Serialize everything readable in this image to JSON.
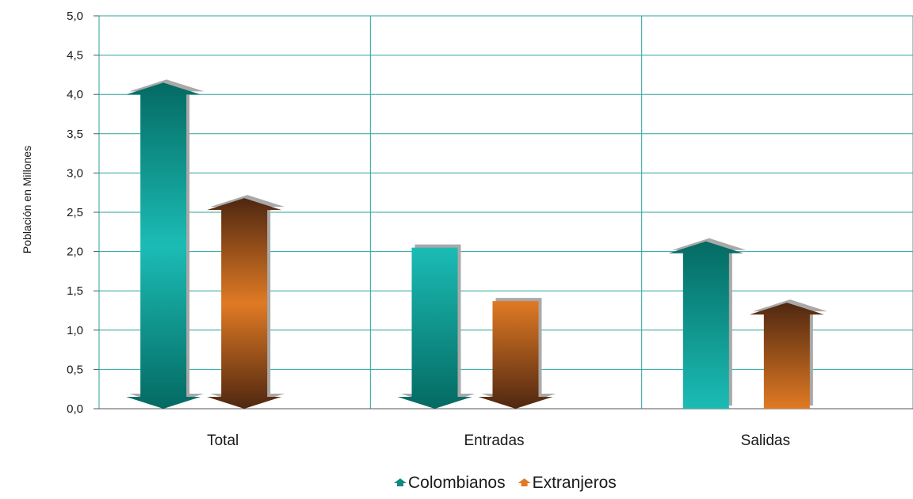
{
  "chart_data": {
    "type": "bar",
    "ylabel": "Población en Millones",
    "ylim": [
      0,
      5
    ],
    "yticks": [
      "0,0",
      "0,5",
      "1,0",
      "1,5",
      "2,0",
      "2,5",
      "3,0",
      "3,5",
      "4,0",
      "4,5",
      "5,0"
    ],
    "categories": [
      "Total",
      "Entradas",
      "Salidas"
    ],
    "series": [
      {
        "name": "Colombianos",
        "values": [
          4.15,
          2.05,
          2.13
        ],
        "color": "#0e8a7f",
        "light_color": "#1bbcb5",
        "dark_color": "#046a62",
        "shapes": [
          "double-arrow",
          "down-arrow",
          "up-arrow"
        ]
      },
      {
        "name": "Extranjeros",
        "values": [
          2.68,
          1.37,
          1.35
        ],
        "color": "#e07a24",
        "light_color": "#e07a24",
        "dark_color": "#4f2710",
        "shapes": [
          "double-arrow",
          "down-arrow",
          "up-arrow"
        ]
      }
    ],
    "grid": true,
    "legend_position": "bottom-center"
  },
  "colors": {
    "gridline": "#2aa39b",
    "axis": "#555555"
  }
}
